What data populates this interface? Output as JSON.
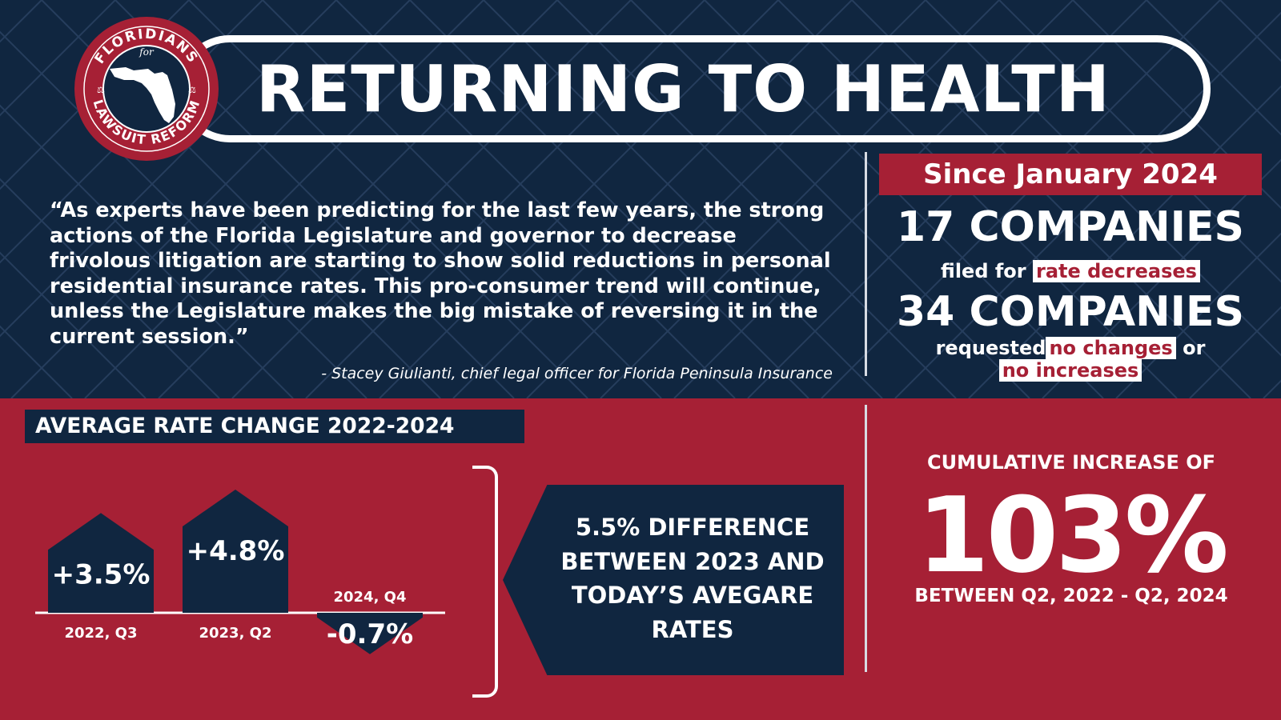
{
  "title": "RETURNING TO HEALTH",
  "logo": {
    "top_text": "FLORIDIANS",
    "middle_text": "for",
    "bottom_text": "LAWSUIT REFORM"
  },
  "quote": {
    "text": "“As experts have been predicting for the last few years, the strong actions of the Florida Legislature and governor to decrease frivolous litigation are starting to show solid reductions in personal residential insurance rates. This pro-consumer trend will continue, unless the Legislature makes the big mistake of reversing it in the current session.”",
    "attribution": "- Stacey Giulianti, chief legal officer for Florida Peninsula Insurance"
  },
  "since": {
    "heading": "Since January 2024",
    "companies_1": "17 COMPANIES",
    "filed_prefix": "filed for",
    "filed_highlight": "rate decreases",
    "companies_2": "34 COMPANIES",
    "requested_prefix": "requested",
    "requested_highlight_1": "no changes",
    "requested_or": "or",
    "requested_highlight_2": "no increases"
  },
  "chart_data": {
    "type": "bar",
    "title": "AVERAGE RATE CHANGE 2022-2024",
    "categories": [
      "2022, Q3",
      "2023, Q2",
      "2024, Q4"
    ],
    "values": [
      3.5,
      4.8,
      -0.7
    ],
    "labels": [
      "+3.5%",
      "+4.8%",
      "-0.7%"
    ]
  },
  "difference": {
    "text": "5.5% DIFFERENCE BETWEEN 2023 AND TODAY’S AVEGARE RATES"
  },
  "cumulative": {
    "label": "CUMULATIVE INCREASE OF",
    "value": "103%",
    "range": "BETWEEN Q2, 2022 - Q2, 2024"
  },
  "colors": {
    "navy": "#102640",
    "red": "#a62035",
    "white": "#ffffff"
  }
}
